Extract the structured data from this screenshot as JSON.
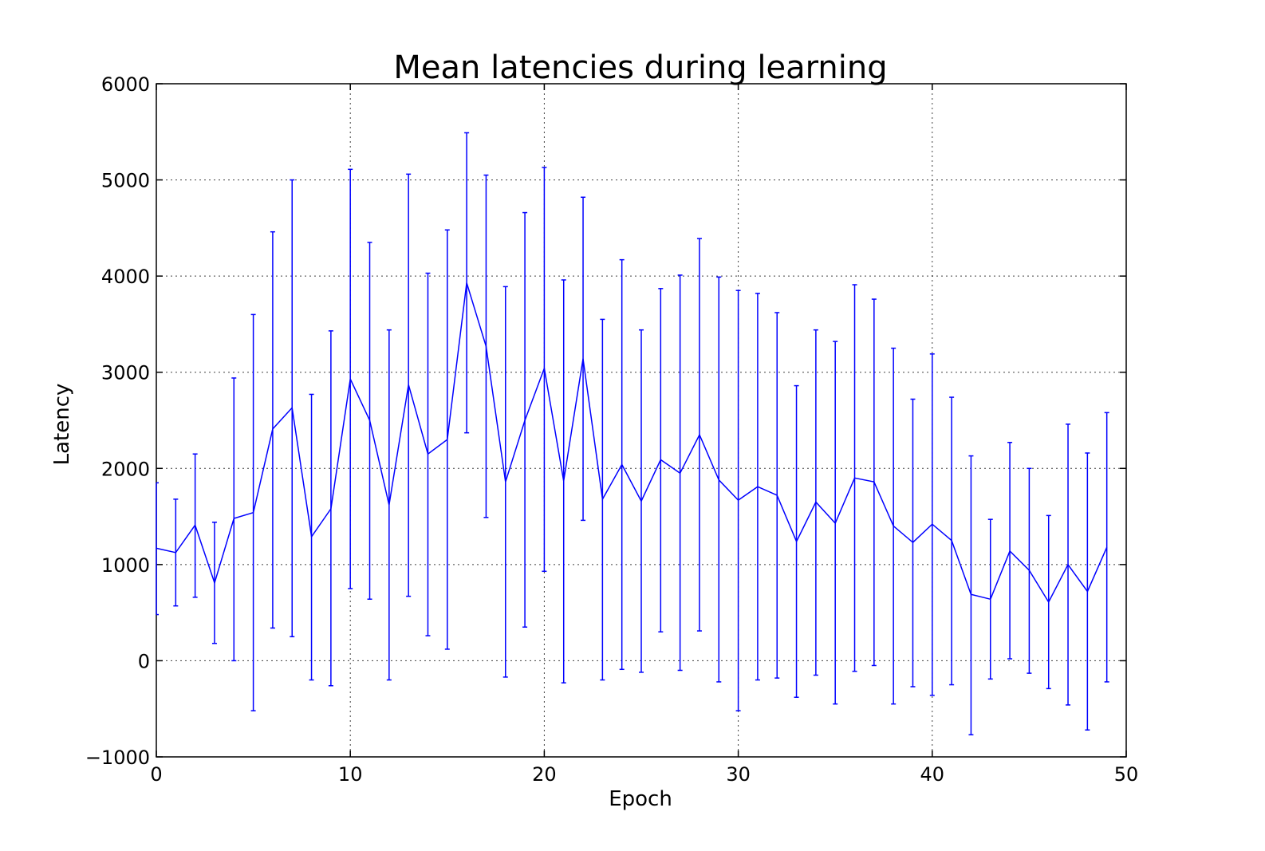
{
  "chart_data": {
    "type": "line",
    "title": "Mean latencies during learning",
    "xlabel": "Epoch",
    "ylabel": "Latency",
    "xlim": [
      0,
      50
    ],
    "ylim": [
      -1000,
      6000
    ],
    "xticks": [
      "0",
      "10",
      "20",
      "30",
      "40",
      "50"
    ],
    "yticks": [
      "−1000",
      "0",
      "1000",
      "2000",
      "3000",
      "4000",
      "5000",
      "6000"
    ],
    "xtick_values": [
      0,
      10,
      20,
      30,
      40,
      50
    ],
    "ytick_values": [
      -1000,
      0,
      1000,
      2000,
      3000,
      4000,
      5000,
      6000
    ],
    "grid": true,
    "series_color": "#0000ff",
    "series": [
      {
        "x": [
          0,
          1,
          2,
          3,
          4,
          5,
          6,
          7,
          8,
          9,
          10,
          11,
          12,
          13,
          14,
          15,
          16,
          17,
          18,
          19,
          20,
          21,
          22,
          23,
          24,
          25,
          26,
          27,
          28,
          29,
          30,
          31,
          32,
          33,
          34,
          35,
          36,
          37,
          38,
          39,
          40,
          41,
          42,
          43,
          44,
          45,
          46,
          47,
          48,
          49
        ],
        "values": [
          1170,
          1125,
          1410,
          810,
          1480,
          1540,
          2410,
          2630,
          1290,
          1580,
          2930,
          2500,
          1620,
          2870,
          2150,
          2300,
          3930,
          3270,
          1860,
          2500,
          3040,
          1870,
          3140,
          1680,
          2040,
          1660,
          2090,
          1950,
          2350,
          1880,
          1670,
          1810,
          1720,
          1240,
          1650,
          1430,
          1900,
          1860,
          1400,
          1230,
          1420,
          1250,
          690,
          640,
          1140,
          940,
          610,
          1000,
          720,
          1180
        ],
        "err_low": [
          480,
          570,
          660,
          180,
          0,
          -520,
          340,
          250,
          -200,
          -260,
          750,
          640,
          -200,
          670,
          260,
          120,
          2370,
          1490,
          -170,
          350,
          930,
          -230,
          1460,
          -200,
          -90,
          -120,
          300,
          -100,
          310,
          -220,
          -520,
          -200,
          -180,
          -380,
          -150,
          -450,
          -110,
          -50,
          -450,
          -270,
          -360,
          -250,
          -770,
          -190,
          20,
          -130,
          -290,
          -460,
          -720,
          -220
        ],
        "err_high": [
          1850,
          1680,
          2150,
          1440,
          2940,
          3600,
          4460,
          5000,
          2770,
          3430,
          5110,
          4350,
          3440,
          5060,
          4030,
          4480,
          5490,
          5050,
          3890,
          4660,
          5130,
          3960,
          4820,
          3550,
          4170,
          3440,
          3870,
          4010,
          4390,
          3990,
          3850,
          3820,
          3620,
          2860,
          3440,
          3320,
          3910,
          3760,
          3250,
          2720,
          3190,
          2740,
          2130,
          1470,
          2270,
          2000,
          1510,
          2460,
          2160,
          2580
        ]
      }
    ]
  }
}
